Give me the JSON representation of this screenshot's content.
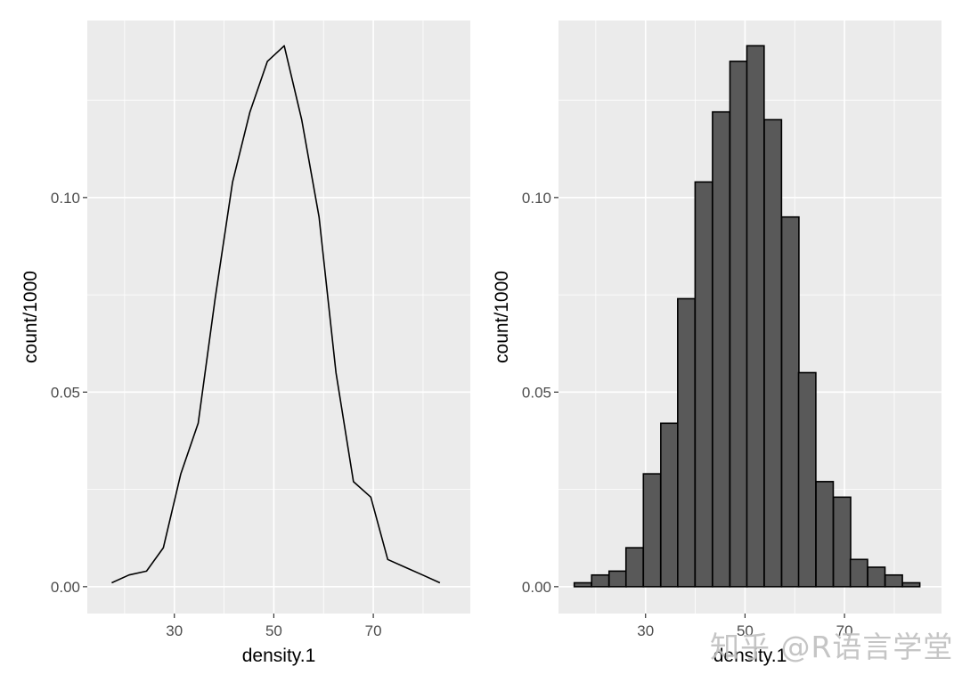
{
  "figure": {
    "watermark": "知乎 @R语言学堂",
    "panel_bg": "#ebebeb",
    "grid_color": "#ffffff",
    "bar_fill": "#595959",
    "bar_outline": "#000000",
    "line_color": "#000000"
  },
  "chart_data": [
    {
      "type": "line",
      "title": "",
      "xlabel": "density.1",
      "ylabel": "count/1000",
      "x_ticks": [
        30,
        50,
        70
      ],
      "x_tick_labels": [
        "30",
        "50",
        "70"
      ],
      "y_ticks": [
        0.0,
        0.05,
        0.1
      ],
      "y_tick_labels": [
        "0.00",
        "0.05",
        "0.10"
      ],
      "xlim": [
        12.5,
        89.5
      ],
      "ylim": [
        -0.0069,
        0.1455
      ],
      "grid": true,
      "legend": null,
      "x": [
        17.4,
        20.9,
        24.4,
        27.8,
        31.3,
        34.8,
        38.2,
        41.7,
        45.2,
        48.7,
        52.1,
        55.6,
        59.1,
        62.5,
        66.0,
        69.5,
        72.9,
        76.4,
        79.9,
        83.4
      ],
      "y": [
        0.001,
        0.003,
        0.004,
        0.01,
        0.029,
        0.042,
        0.074,
        0.104,
        0.122,
        0.135,
        0.139,
        0.12,
        0.095,
        0.055,
        0.027,
        0.023,
        0.007,
        0.005,
        0.003,
        0.001
      ]
    },
    {
      "type": "bar",
      "title": "",
      "xlabel": "density.1",
      "ylabel": "count/1000",
      "x_ticks": [
        30,
        50,
        70
      ],
      "x_tick_labels": [
        "30",
        "50",
        "70"
      ],
      "y_ticks": [
        0.0,
        0.05,
        0.1
      ],
      "y_tick_labels": [
        "0.00",
        "0.05",
        "0.10"
      ],
      "xlim": [
        12.5,
        89.5
      ],
      "ylim": [
        -0.0069,
        0.1455
      ],
      "grid": true,
      "legend": null,
      "bin_width": 3.47,
      "categories": [
        17.4,
        20.9,
        24.4,
        27.8,
        31.3,
        34.8,
        38.2,
        41.7,
        45.2,
        48.7,
        52.1,
        55.6,
        59.1,
        62.5,
        66.0,
        69.5,
        72.9,
        76.4,
        79.9,
        83.4
      ],
      "values": [
        0.001,
        0.003,
        0.004,
        0.01,
        0.029,
        0.042,
        0.074,
        0.104,
        0.122,
        0.135,
        0.139,
        0.12,
        0.095,
        0.055,
        0.027,
        0.023,
        0.007,
        0.005,
        0.003,
        0.001
      ]
    }
  ]
}
